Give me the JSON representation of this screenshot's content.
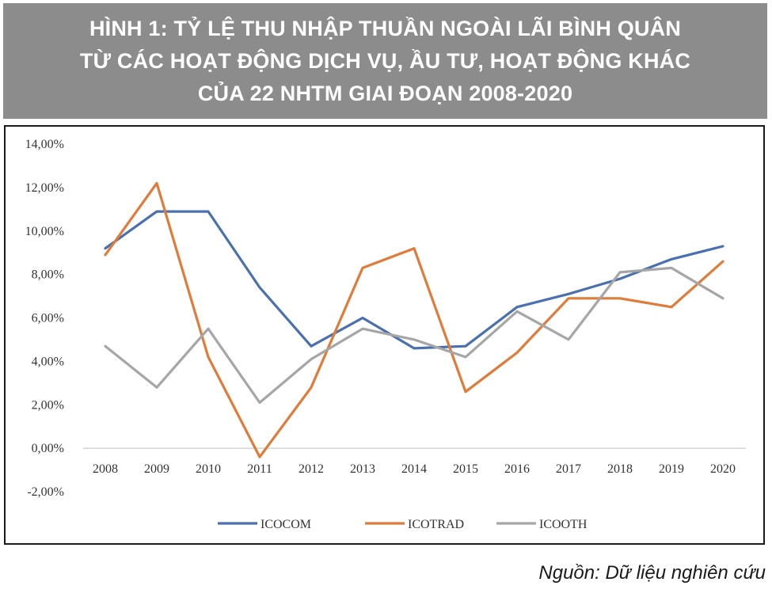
{
  "header": {
    "title_lines": [
      "HÌNH 1: TỶ LỆ THU NHẬP THUẦN NGOÀI LÃI BÌNH QUÂN",
      "TỪ CÁC HOẠT ĐỘNG DỊCH VỤ, ẦU TƯ, HOẠT ĐỘNG KHÁC",
      "CỦA 22 NHTM GIAI ĐOẠN 2008-2020"
    ]
  },
  "source": "Nguồn: Dữ liệu nghiên cứu",
  "colors": {
    "title_bg": "#8c8c8c",
    "ICOCOM": "#4a70b0",
    "ICOTRAD": "#e07b39",
    "ICOOTH": "#a6a6a6"
  },
  "chart_data": {
    "type": "line",
    "title": "",
    "xlabel": "",
    "ylabel": "",
    "categories": [
      "2008",
      "2009",
      "2010",
      "2011",
      "2012",
      "2013",
      "2014",
      "2015",
      "2016",
      "2017",
      "2018",
      "2019",
      "2020"
    ],
    "ylim": [
      -2,
      14
    ],
    "yticks": [
      -2,
      0,
      2,
      4,
      6,
      8,
      10,
      12,
      14
    ],
    "ytick_labels": [
      "-2,00%",
      "0,00%",
      "2,00%",
      "4,00%",
      "6,00%",
      "8,00%",
      "10,00%",
      "12,00%",
      "14,00%"
    ],
    "grid": false,
    "legend_position": "bottom",
    "series": [
      {
        "name": "ICOCOM",
        "color": "#4a70b0",
        "values": [
          9.2,
          10.9,
          10.9,
          7.4,
          4.7,
          6.0,
          4.6,
          4.7,
          6.5,
          7.1,
          7.8,
          8.7,
          9.3
        ]
      },
      {
        "name": "ICOTRAD",
        "color": "#e07b39",
        "values": [
          8.9,
          12.2,
          4.2,
          -0.4,
          2.8,
          8.3,
          9.2,
          2.6,
          4.4,
          6.9,
          6.9,
          6.5,
          8.6
        ]
      },
      {
        "name": "ICOOTH",
        "color": "#a6a6a6",
        "values": [
          4.7,
          2.8,
          5.5,
          2.1,
          4.1,
          5.5,
          5.0,
          4.2,
          6.3,
          5.0,
          8.1,
          8.3,
          6.9
        ]
      }
    ]
  }
}
